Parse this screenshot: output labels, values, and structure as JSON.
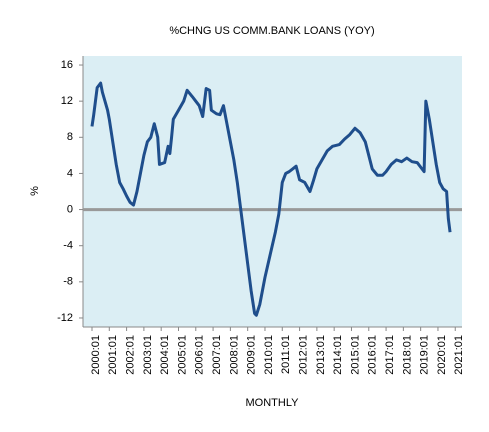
{
  "chart_data": {
    "type": "line",
    "title": "%CHNG US COMM.BANK LOANS (YOY)",
    "x_label": "MONTHLY",
    "y_label": "%",
    "series": [
      {
        "name": "%CHNG US COMM.BANK LOANS (YOY)",
        "color": "#1f4e8c",
        "x": [
          2000.0,
          2000.1,
          2000.3,
          2000.5,
          2000.6,
          2000.9,
          2001.0,
          2001.2,
          2001.4,
          2001.6,
          2001.8,
          2002.0,
          2002.2,
          2002.4,
          2002.6,
          2002.8,
          2003.0,
          2003.2,
          2003.4,
          2003.6,
          2003.8,
          2003.9,
          2004.2,
          2004.4,
          2004.5,
          2004.6,
          2004.7,
          2005.0,
          2005.3,
          2005.5,
          2005.8,
          2006.0,
          2006.2,
          2006.4,
          2006.6,
          2006.8,
          2006.9,
          2007.2,
          2007.4,
          2007.6,
          2007.8,
          2008.0,
          2008.2,
          2008.4,
          2008.6,
          2008.8,
          2009.0,
          2009.2,
          2009.4,
          2009.5,
          2009.7,
          2010.0,
          2010.3,
          2010.6,
          2010.8,
          2011.0,
          2011.2,
          2011.4,
          2011.6,
          2011.8,
          2012.0,
          2012.3,
          2012.6,
          2012.8,
          2013.0,
          2013.3,
          2013.6,
          2013.9,
          2014.3,
          2014.6,
          2014.9,
          2015.2,
          2015.5,
          2015.8,
          2016.0,
          2016.2,
          2016.5,
          2016.8,
          2017.0,
          2017.3,
          2017.6,
          2017.9,
          2018.2,
          2018.5,
          2018.8,
          2019.0,
          2019.2,
          2019.3,
          2019.5,
          2019.7,
          2019.9,
          2020.1,
          2020.3,
          2020.5,
          2020.6,
          2020.7
        ],
        "values": [
          9.2,
          10.5,
          13.5,
          14.0,
          13.0,
          11.0,
          10.0,
          7.5,
          5,
          3,
          2.3,
          1.5,
          0.8,
          0.5,
          2,
          4,
          6,
          7.5,
          8,
          9.5,
          8,
          5,
          5.2,
          7,
          6.2,
          8,
          10,
          11,
          12,
          13.2,
          12.5,
          12,
          11.5,
          10.3,
          13.4,
          13.2,
          11,
          10.6,
          10.5,
          11.5,
          9.5,
          7.5,
          5.5,
          3,
          0,
          -3,
          -6,
          -9,
          -11.5,
          -11.7,
          -10.5,
          -7.5,
          -5,
          -2.5,
          -0.5,
          3,
          4,
          4.2,
          4.5,
          4.8,
          3.3,
          3.0,
          2,
          3.2,
          4.5,
          5.5,
          6.5,
          7,
          7.2,
          7.8,
          8.3,
          9,
          8.5,
          7.5,
          6,
          4.5,
          3.8,
          3.8,
          4.2,
          5,
          5.5,
          5.3,
          5.7,
          5.3,
          5.2,
          4.7,
          4.2,
          12,
          10,
          7.5,
          5,
          3,
          2.3,
          2,
          -1,
          -2.5
        ]
      }
    ],
    "xlim": [
      1999.48,
      2021.39
    ],
    "xticks": [
      {
        "value": 2000,
        "label": "2000:01"
      },
      {
        "value": 2001,
        "label": "2001:01"
      },
      {
        "value": 2002,
        "label": "2002:01"
      },
      {
        "value": 2003,
        "label": "2003:01"
      },
      {
        "value": 2004,
        "label": "2004:01"
      },
      {
        "value": 2005,
        "label": "2005:01"
      },
      {
        "value": 2006,
        "label": "2006:01"
      },
      {
        "value": 2007,
        "label": "2007:01"
      },
      {
        "value": 2008,
        "label": "2008:01"
      },
      {
        "value": 2009,
        "label": "2009:01"
      },
      {
        "value": 2010,
        "label": "2010:01"
      },
      {
        "value": 2011,
        "label": "2011:01"
      },
      {
        "value": 2012,
        "label": "2012:01"
      },
      {
        "value": 2013,
        "label": "2013:01"
      },
      {
        "value": 2014,
        "label": "2014:01"
      },
      {
        "value": 2015,
        "label": "2015:01"
      },
      {
        "value": 2016,
        "label": "2016:01"
      },
      {
        "value": 2017,
        "label": "2017:01"
      },
      {
        "value": 2018,
        "label": "2018:01"
      },
      {
        "value": 2019,
        "label": "2019:01"
      },
      {
        "value": 2020,
        "label": "2020:01"
      },
      {
        "value": 2021,
        "label": "2021:01"
      }
    ],
    "ylim": [
      -13,
      17
    ],
    "yticks": [
      -12,
      -8,
      -4,
      0,
      4,
      8,
      12,
      16
    ],
    "zero_line": true,
    "background": "#dbeef4"
  }
}
